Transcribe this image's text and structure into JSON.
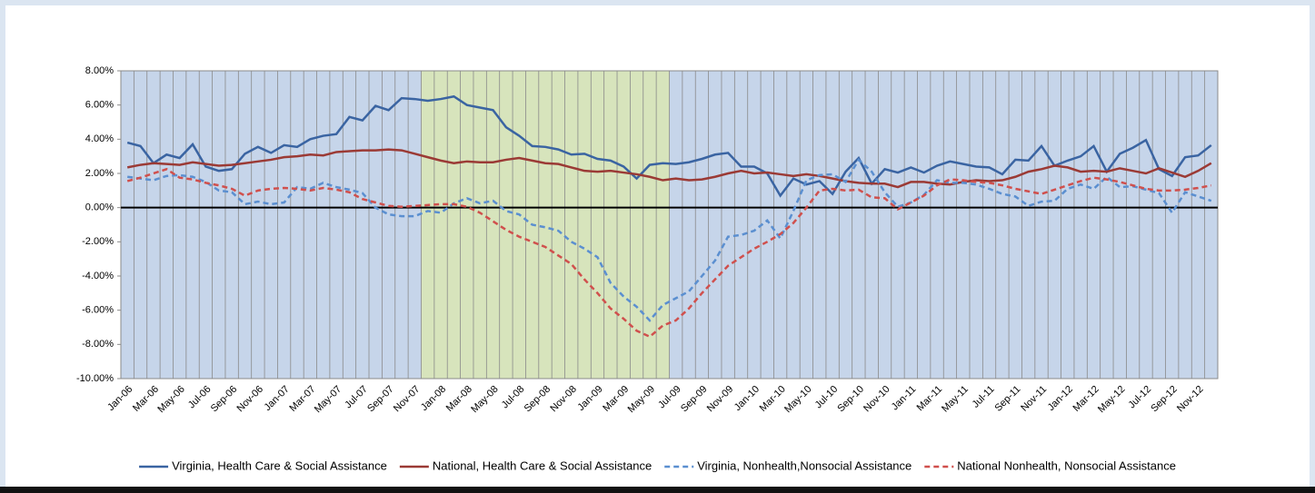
{
  "chart_data": {
    "type": "line",
    "categories": [
      "Jan-06",
      null,
      "Mar-06",
      null,
      "May-06",
      null,
      "Jul-06",
      null,
      "Sep-06",
      null,
      "Nov-06",
      null,
      "Jan-07",
      null,
      "Mar-07",
      null,
      "May-07",
      null,
      "Jul-07",
      null,
      "Sep-07",
      null,
      "Nov-07",
      null,
      "Jan-08",
      null,
      "Mar-08",
      null,
      "May-08",
      null,
      "Jul-08",
      null,
      "Sep-08",
      null,
      "Nov-08",
      null,
      "Jan-09",
      null,
      "Mar-09",
      null,
      "May-09",
      null,
      "Jul-09",
      null,
      "Sep-09",
      null,
      "Nov-09",
      null,
      "Jan-10",
      null,
      "Mar-10",
      null,
      "May-10",
      null,
      "Jul-10",
      null,
      "Sep-10",
      null,
      "Nov-10",
      null,
      "Jan-11",
      null,
      "Mar-11",
      null,
      "May-11",
      null,
      "Jul-11",
      null,
      "Sep-11",
      null,
      "Nov-11",
      null,
      "Jan-12",
      null,
      "Mar-12",
      null,
      "May-12",
      null,
      "Jul-12",
      null,
      "Sep-12",
      null,
      "Nov-12",
      null
    ],
    "series": [
      {
        "name": "Virginia, Health Care & Social Assistance",
        "color": "#3a64a2",
        "dashed": false,
        "values": [
          3.8,
          3.6,
          2.6,
          3.1,
          2.9,
          3.7,
          2.4,
          2.15,
          2.25,
          3.15,
          3.55,
          3.2,
          3.65,
          3.55,
          4.0,
          4.2,
          4.3,
          5.3,
          5.1,
          5.95,
          5.7,
          6.4,
          6.35,
          6.25,
          6.35,
          6.5,
          6.0,
          5.85,
          5.7,
          4.7,
          4.2,
          3.6,
          3.55,
          3.4,
          3.1,
          3.15,
          2.85,
          2.75,
          2.4,
          1.7,
          2.5,
          2.6,
          2.55,
          2.65,
          2.85,
          3.1,
          3.2,
          2.4,
          2.4,
          2.0,
          0.7,
          1.7,
          1.35,
          1.55,
          0.8,
          2.1,
          2.9,
          1.4,
          2.25,
          2.05,
          2.35,
          2.05,
          2.45,
          2.7,
          2.55,
          2.4,
          2.35,
          1.95,
          2.8,
          2.75,
          3.6,
          2.45,
          2.75,
          3.0,
          3.6,
          2.1,
          3.15,
          3.5,
          3.95,
          2.25,
          1.85,
          2.95,
          3.05,
          3.65
        ]
      },
      {
        "name": "National, Health Care & Social Assistance",
        "color": "#9b3a35",
        "dashed": false,
        "values": [
          2.35,
          2.5,
          2.6,
          2.55,
          2.5,
          2.65,
          2.55,
          2.45,
          2.5,
          2.6,
          2.7,
          2.8,
          2.95,
          3.0,
          3.1,
          3.05,
          3.25,
          3.3,
          3.35,
          3.35,
          3.4,
          3.35,
          3.15,
          2.95,
          2.75,
          2.6,
          2.7,
          2.65,
          2.65,
          2.8,
          2.9,
          2.75,
          2.6,
          2.55,
          2.35,
          2.15,
          2.1,
          2.15,
          2.05,
          1.95,
          1.8,
          1.6,
          1.7,
          1.6,
          1.65,
          1.8,
          2.0,
          2.15,
          2.0,
          2.05,
          1.95,
          1.85,
          1.95,
          1.85,
          1.7,
          1.55,
          1.45,
          1.4,
          1.4,
          1.2,
          1.5,
          1.5,
          1.4,
          1.35,
          1.5,
          1.6,
          1.55,
          1.6,
          1.8,
          2.1,
          2.25,
          2.45,
          2.35,
          2.1,
          2.15,
          2.1,
          2.3,
          2.15,
          2.0,
          2.3,
          2.05,
          1.8,
          2.15,
          2.6
        ]
      },
      {
        "name": "Virginia, Nonhealth,Nonsocial Assistance",
        "color": "#5b8fd0",
        "dashed": true,
        "values": [
          1.8,
          1.7,
          1.6,
          1.85,
          1.9,
          1.8,
          1.5,
          1.0,
          0.9,
          0.2,
          0.35,
          0.2,
          0.3,
          1.2,
          1.1,
          1.45,
          1.2,
          1.05,
          0.85,
          0.0,
          -0.4,
          -0.5,
          -0.5,
          -0.2,
          -0.3,
          0.25,
          0.55,
          0.25,
          0.4,
          -0.2,
          -0.4,
          -1.0,
          -1.15,
          -1.35,
          -2.0,
          -2.4,
          -2.9,
          -4.4,
          -5.2,
          -5.8,
          -6.6,
          -5.7,
          -5.3,
          -4.9,
          -4.0,
          -3.1,
          -1.7,
          -1.6,
          -1.35,
          -0.75,
          -1.8,
          -0.2,
          1.6,
          1.9,
          1.95,
          1.5,
          2.8,
          2.1,
          0.9,
          0.05,
          0.3,
          0.75,
          1.6,
          1.45,
          1.45,
          1.35,
          1.1,
          0.8,
          0.65,
          0.1,
          0.35,
          0.4,
          1.1,
          1.35,
          1.1,
          1.8,
          1.2,
          1.25,
          1.05,
          0.85,
          -0.3,
          0.9,
          0.65,
          0.4
        ]
      },
      {
        "name": "National Nonhealth,  Nonsocial Assistance",
        "color": "#d0504d",
        "dashed": true,
        "values": [
          1.55,
          1.75,
          2.0,
          2.25,
          1.75,
          1.65,
          1.45,
          1.3,
          1.1,
          0.7,
          1.0,
          1.1,
          1.15,
          1.1,
          1.0,
          1.15,
          1.05,
          0.9,
          0.5,
          0.3,
          0.1,
          0.05,
          0.1,
          0.15,
          0.2,
          0.2,
          0.05,
          -0.3,
          -0.8,
          -1.3,
          -1.7,
          -2.0,
          -2.3,
          -2.8,
          -3.3,
          -4.2,
          -5.0,
          -5.9,
          -6.5,
          -7.2,
          -7.55,
          -6.9,
          -6.6,
          -5.9,
          -5.0,
          -4.2,
          -3.4,
          -2.9,
          -2.4,
          -2.0,
          -1.55,
          -0.9,
          0.0,
          1.0,
          1.1,
          1.0,
          1.05,
          0.6,
          0.55,
          -0.1,
          0.3,
          0.7,
          1.3,
          1.65,
          1.6,
          1.5,
          1.45,
          1.3,
          1.1,
          0.95,
          0.8,
          1.05,
          1.3,
          1.55,
          1.75,
          1.65,
          1.5,
          1.3,
          1.1,
          1.0,
          1.0,
          1.05,
          1.15,
          1.3
        ]
      }
    ],
    "ylim": [
      -10,
      8
    ],
    "yticks": [
      {
        "value": -10,
        "label": "-10.00%"
      },
      {
        "value": -8,
        "label": "-8.00%"
      },
      {
        "value": -6,
        "label": "-6.00%"
      },
      {
        "value": -4,
        "label": "-4.00%"
      },
      {
        "value": -2,
        "label": "-2.00%"
      },
      {
        "value": 0,
        "label": "0.00%"
      },
      {
        "value": 2,
        "label": "2.00%"
      },
      {
        "value": 4,
        "label": "4.00%"
      },
      {
        "value": 6,
        "label": "6.00%"
      },
      {
        "value": 8,
        "label": "8.00%"
      }
    ],
    "grid": "x",
    "plot_color": "#c6d5ea",
    "shaded_span": {
      "from": 23,
      "to": 41,
      "color": "#d7e4bc"
    },
    "legend": "bottom"
  }
}
